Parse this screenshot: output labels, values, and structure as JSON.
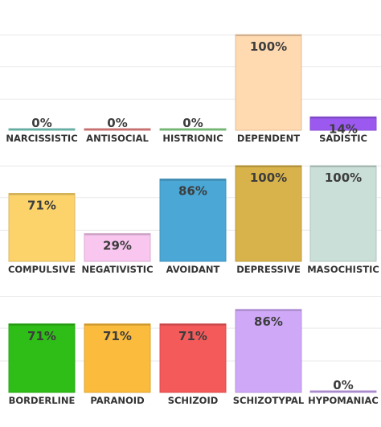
{
  "chart_data": [
    {
      "type": "bar",
      "ylim": [
        0,
        100
      ],
      "grid": true,
      "categories": [
        "NARCISSISTIC",
        "ANTISOCIAL",
        "HISTRIONIC",
        "DEPENDENT",
        "SADISTIC"
      ],
      "values": [
        0,
        0,
        0,
        100,
        14
      ],
      "labels": [
        "0%",
        "0%",
        "0%",
        "100%",
        "14%"
      ],
      "colors": [
        "#7fd3c6",
        "#f08a8a",
        "#8fdc8f",
        "#ffd9b0",
        "#9b59f0"
      ]
    },
    {
      "type": "bar",
      "ylim": [
        0,
        100
      ],
      "grid": true,
      "categories": [
        "COMPULSIVE",
        "NEGATIVISTIC",
        "AVOIDANT",
        "DEPRESSIVE",
        "MASOCHISTIC"
      ],
      "values": [
        71,
        29,
        86,
        100,
        100
      ],
      "labels": [
        "71%",
        "29%",
        "86%",
        "100%",
        "100%"
      ],
      "colors": [
        "#fcd36b",
        "#f8c6ef",
        "#4aa7d6",
        "#d8b24a",
        "#cadfd8"
      ]
    },
    {
      "type": "bar",
      "ylim": [
        0,
        100
      ],
      "grid": true,
      "categories": [
        "BORDERLINE",
        "PARANOID",
        "SCHIZOID",
        "SCHIZOTYPAL",
        "HYPOMANIAC"
      ],
      "values": [
        71,
        71,
        71,
        86,
        0
      ],
      "labels": [
        "71%",
        "71%",
        "71%",
        "86%",
        "0%"
      ],
      "colors": [
        "#2fbd17",
        "#fbbb3c",
        "#f55a5a",
        "#cfa9f8",
        "#cfa9f8"
      ]
    }
  ]
}
